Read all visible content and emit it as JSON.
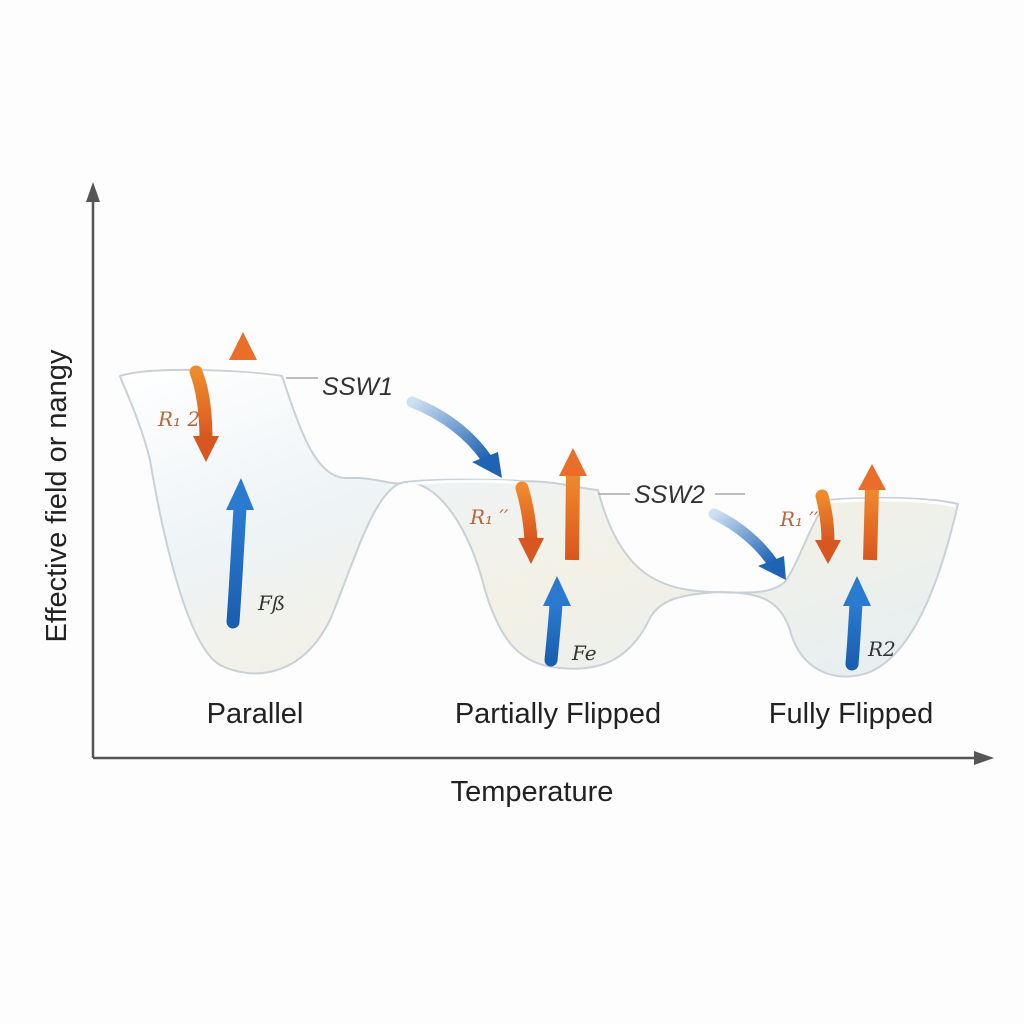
{
  "axes": {
    "x_title": "Temperature",
    "y_title": "Effective field or nangy"
  },
  "states": [
    {
      "label": "Parallel",
      "upper_label": "R₁ 2",
      "lower_label": "Fß"
    },
    {
      "label": "Partially Flipped",
      "upper_label": "R₁ ′′",
      "lower_label": "Fe"
    },
    {
      "label": "Fully Flipped",
      "upper_label": "R₁ ′′",
      "lower_label": "R2"
    }
  ],
  "transitions": [
    {
      "label": "SSW1"
    },
    {
      "label": "SSW2"
    }
  ],
  "colors": {
    "upper_arrow": "#e0672a",
    "lower_arrow": "#1f64b4",
    "transition_arrow": "#2f76c6",
    "axis": "#555555",
    "well_fill": "#eef3f4",
    "well_edge": "#c9d1d6"
  },
  "icons": [
    "upward-arrow-icon",
    "downward-arrow-icon",
    "curved-transition-arrow-icon"
  ]
}
